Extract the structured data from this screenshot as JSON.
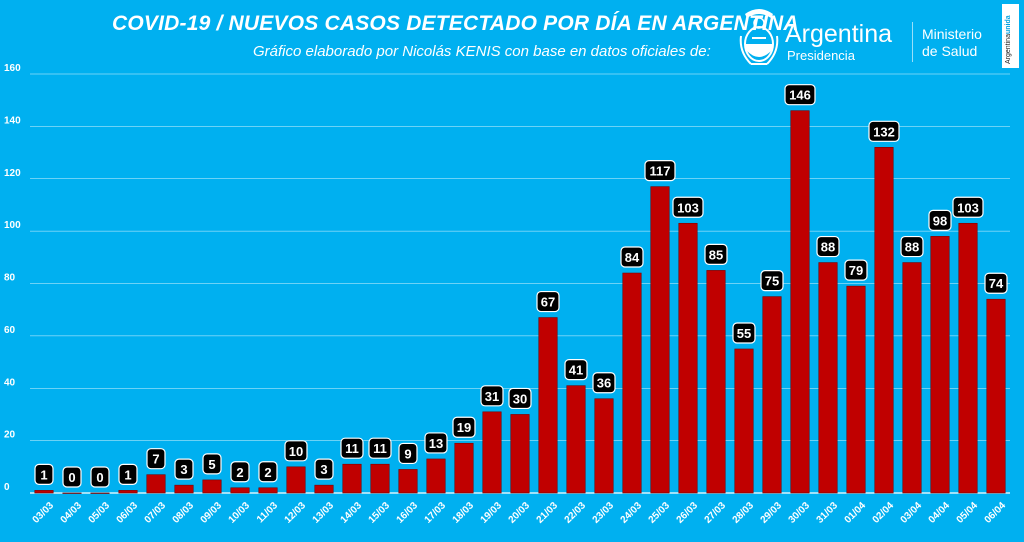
{
  "header": {
    "title": "COVID-19  /  NUEVOS CASOS DETECTADO POR DÍA EN ARGENTINA",
    "subtitle": "Gráfico elaborado por Nicolás KENIS con base en datos oficiales de:"
  },
  "logo": {
    "country": "Argentina",
    "presidency": "Presidencia",
    "ministry_line1": "Ministerio",
    "ministry_line2": "de Salud",
    "seal_icon": "argentina-seal-icon"
  },
  "badge": {
    "prefix": "Argentina",
    "suffix": "unida"
  },
  "colors": {
    "background": "#00b0f0",
    "bar": "#c00000",
    "label_box": "#000000",
    "label_text": "#ffffff",
    "grid": "#ffffff"
  },
  "chart_data": {
    "type": "bar",
    "title": "COVID-19  /  NUEVOS CASOS DETECTADO POR DÍA EN ARGENTINA",
    "xlabel": "",
    "ylabel": "",
    "ylim": [
      0,
      160
    ],
    "yticks": [
      0,
      20,
      40,
      60,
      80,
      100,
      120,
      140,
      160
    ],
    "grid": true,
    "legend": "none",
    "categories": [
      "03/03",
      "04/03",
      "05/03",
      "06/03",
      "07/03",
      "08/03",
      "09/03",
      "10/03",
      "11/03",
      "12/03",
      "13/03",
      "14/03",
      "15/03",
      "16/03",
      "17/03",
      "18/03",
      "19/03",
      "20/03",
      "21/03",
      "22/03",
      "23/03",
      "24/03",
      "25/03",
      "26/03",
      "27/03",
      "28/03",
      "29/03",
      "30/03",
      "31/03",
      "01/04",
      "02/04",
      "03/04",
      "04/04",
      "05/04",
      "06/04"
    ],
    "values": [
      1,
      0,
      0,
      1,
      7,
      3,
      5,
      2,
      2,
      10,
      3,
      11,
      11,
      9,
      13,
      19,
      31,
      30,
      67,
      41,
      36,
      84,
      117,
      103,
      85,
      55,
      75,
      146,
      88,
      79,
      132,
      88,
      98,
      103,
      74
    ]
  }
}
